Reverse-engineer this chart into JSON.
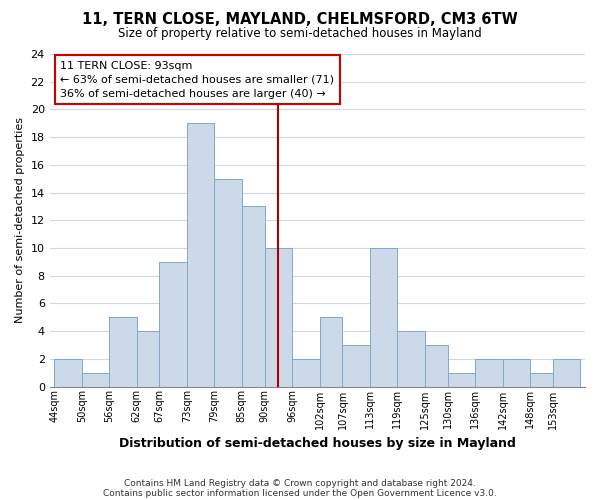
{
  "title": "11, TERN CLOSE, MAYLAND, CHELMSFORD, CM3 6TW",
  "subtitle": "Size of property relative to semi-detached houses in Mayland",
  "xlabel": "Distribution of semi-detached houses by size in Mayland",
  "ylabel": "Number of semi-detached properties",
  "footnote1": "Contains HM Land Registry data © Crown copyright and database right 2024.",
  "footnote2": "Contains public sector information licensed under the Open Government Licence v3.0.",
  "annotation_title": "11 TERN CLOSE: 93sqm",
  "annotation_line1": "← 63% of semi-detached houses are smaller (71)",
  "annotation_line2": "36% of semi-detached houses are larger (40) →",
  "bar_edges": [
    44,
    50,
    56,
    62,
    67,
    73,
    79,
    85,
    90,
    96,
    102,
    107,
    113,
    119,
    125,
    130,
    136,
    142,
    148,
    153,
    159
  ],
  "bar_heights": [
    2,
    1,
    5,
    4,
    9,
    19,
    15,
    13,
    10,
    2,
    5,
    3,
    10,
    4,
    3,
    1,
    2,
    2,
    1,
    2
  ],
  "property_value": 93,
  "bar_color": "#ccd9e8",
  "bar_edge_color": "#7fa8c8",
  "line_color": "#aa0000",
  "bg_color": "#ffffff",
  "plot_bg_color": "#ffffff",
  "grid_color": "#d0d8e0",
  "annotation_box_color": "#ffffff",
  "annotation_box_edge": "#cc0000",
  "ylim": [
    0,
    24
  ],
  "yticks": [
    0,
    2,
    4,
    6,
    8,
    10,
    12,
    14,
    16,
    18,
    20,
    22,
    24
  ]
}
